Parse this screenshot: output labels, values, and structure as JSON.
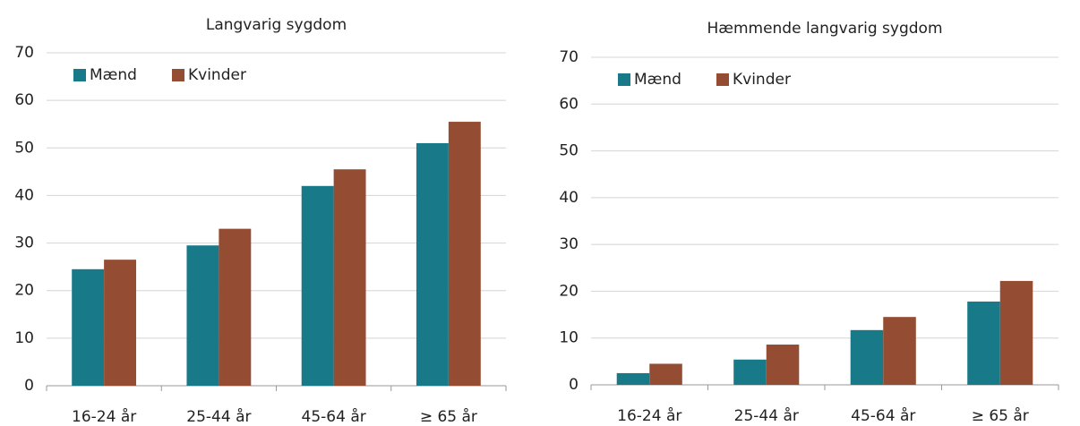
{
  "chart_data": [
    {
      "type": "bar",
      "title": "Langvarig sygdom",
      "categories": [
        "16-24 år",
        "25-44 år",
        "45-64 år",
        "≥ 65 år"
      ],
      "series": [
        {
          "name": "Mænd",
          "color": "#187a89",
          "values": [
            24.5,
            29.5,
            42,
            51
          ]
        },
        {
          "name": "Kvinder",
          "color": "#944c33",
          "values": [
            26.5,
            33,
            45.5,
            55.5
          ]
        }
      ],
      "ylim": [
        0,
        70
      ],
      "yticks": [
        0,
        10,
        20,
        30,
        40,
        50,
        60,
        70
      ],
      "grid": true,
      "legend": "upper left"
    },
    {
      "type": "bar",
      "title": "Hæmmende langvarig sygdom",
      "categories": [
        "16-24 år",
        "25-44 år",
        "45-64 år",
        "≥ 65 år"
      ],
      "series": [
        {
          "name": "Mænd",
          "color": "#187a89",
          "values": [
            2.5,
            5.4,
            11.7,
            17.8
          ]
        },
        {
          "name": "Kvinder",
          "color": "#944c33",
          "values": [
            4.5,
            8.6,
            14.5,
            22.2
          ]
        }
      ],
      "ylim": [
        0,
        70
      ],
      "yticks": [
        0,
        10,
        20,
        30,
        40,
        50,
        60,
        70
      ],
      "grid": true,
      "legend": "upper left"
    }
  ]
}
